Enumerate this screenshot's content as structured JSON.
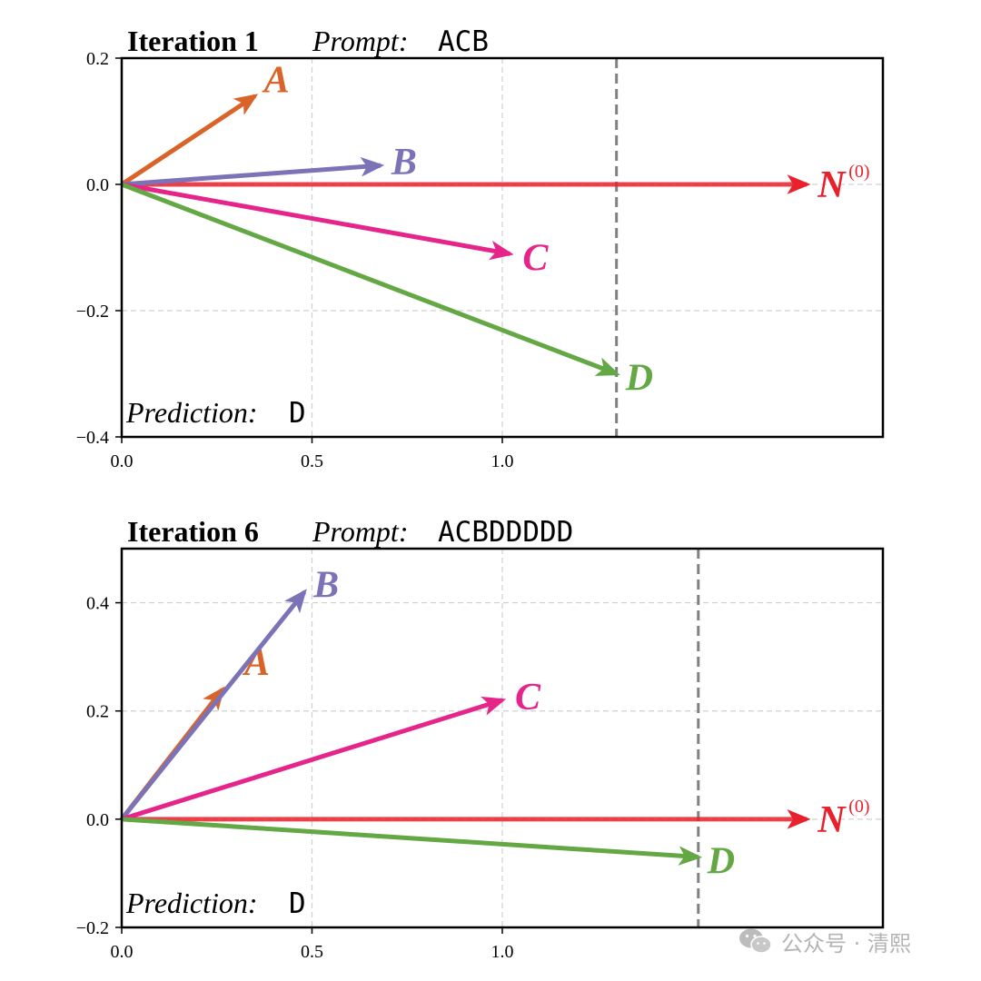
{
  "chart_data": [
    {
      "type": "vector",
      "title_iteration": "Iteration 1",
      "title_prompt_label": "Prompt:",
      "title_prompt": "ACB",
      "prediction_label": "Prediction:",
      "prediction": "D",
      "xlim": [
        0.0,
        2.0
      ],
      "ylim": [
        -0.4,
        0.2
      ],
      "xticks": [
        0.0,
        0.5,
        1.0
      ],
      "xtick_labels": [
        "0.0",
        "0.5",
        "1.0"
      ],
      "yticks": [
        -0.4,
        -0.2,
        0.0,
        0.2
      ],
      "ytick_labels": [
        "−0.4",
        "−0.2",
        "0.0",
        "0.2"
      ],
      "grid": true,
      "reference_line_x": 1.3,
      "vectors": [
        {
          "name": "N",
          "label": "N",
          "superscript": "(0)",
          "x": 1.8,
          "y": 0.0,
          "color": "#e8212d"
        },
        {
          "name": "A",
          "label": "A",
          "superscript": "",
          "x": 0.35,
          "y": 0.14,
          "color": "#d9642a"
        },
        {
          "name": "B",
          "label": "B",
          "superscript": "",
          "x": 0.68,
          "y": 0.03,
          "color": "#7b72b8"
        },
        {
          "name": "C",
          "label": "C",
          "superscript": "",
          "x": 1.02,
          "y": -0.11,
          "color": "#e6258a"
        },
        {
          "name": "D",
          "label": "D",
          "superscript": "",
          "x": 1.3,
          "y": -0.3,
          "color": "#63a844"
        }
      ]
    },
    {
      "type": "vector",
      "title_iteration": "Iteration 6",
      "title_prompt_label": "Prompt:",
      "title_prompt": "ACBDDDDD",
      "prediction_label": "Prediction:",
      "prediction": "D",
      "xlim": [
        0.0,
        2.0
      ],
      "ylim": [
        -0.2,
        0.5
      ],
      "xticks": [
        0.0,
        0.5,
        1.0
      ],
      "xtick_labels": [
        "0.0",
        "0.5",
        "1.0"
      ],
      "yticks": [
        -0.2,
        0.0,
        0.2,
        0.4
      ],
      "ytick_labels": [
        "−0.2",
        "0.0",
        "0.2",
        "0.4"
      ],
      "grid": true,
      "reference_line_x": 1.515,
      "vectors": [
        {
          "name": "N",
          "label": "N",
          "superscript": "(0)",
          "x": 1.8,
          "y": 0.0,
          "color": "#e8212d"
        },
        {
          "name": "A",
          "label": "A",
          "superscript": "",
          "x": 0.265,
          "y": 0.24,
          "color": "#d9642a"
        },
        {
          "name": "B",
          "label": "B",
          "superscript": "",
          "x": 0.48,
          "y": 0.42,
          "color": "#7b72b8"
        },
        {
          "name": "C",
          "label": "C",
          "superscript": "",
          "x": 1.0,
          "y": 0.22,
          "color": "#e6258a"
        },
        {
          "name": "D",
          "label": "D",
          "superscript": "",
          "x": 1.515,
          "y": -0.07,
          "color": "#63a844"
        }
      ]
    }
  ],
  "watermark": {
    "text": "公众号 · 清熙",
    "icon": "wechat-icon"
  }
}
